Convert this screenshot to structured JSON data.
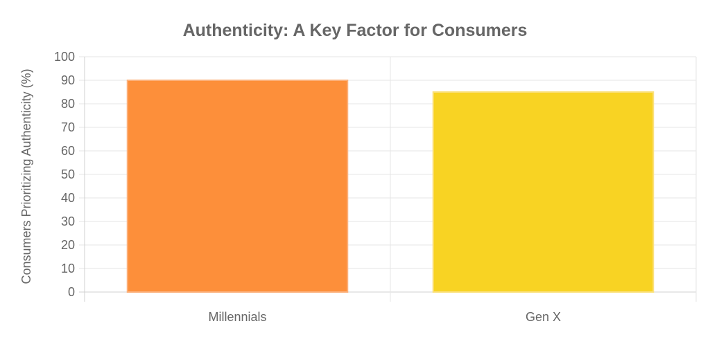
{
  "chart_data": {
    "type": "bar",
    "title": "Authenticity: A Key Factor for Consumers",
    "xlabel": "",
    "ylabel": "Consumers Prioritizing Authenticity (%)",
    "categories": [
      "Millennials",
      "Gen X"
    ],
    "values": [
      90,
      85
    ],
    "colors": [
      "#fd8f3a",
      "#f8d323"
    ],
    "border_colors": [
      "#fcb07a",
      "#fae07a"
    ],
    "ylim": [
      0,
      100
    ],
    "yticks": [
      0,
      10,
      20,
      30,
      40,
      50,
      60,
      70,
      80,
      90,
      100
    ],
    "grid": true,
    "legend": "none"
  }
}
